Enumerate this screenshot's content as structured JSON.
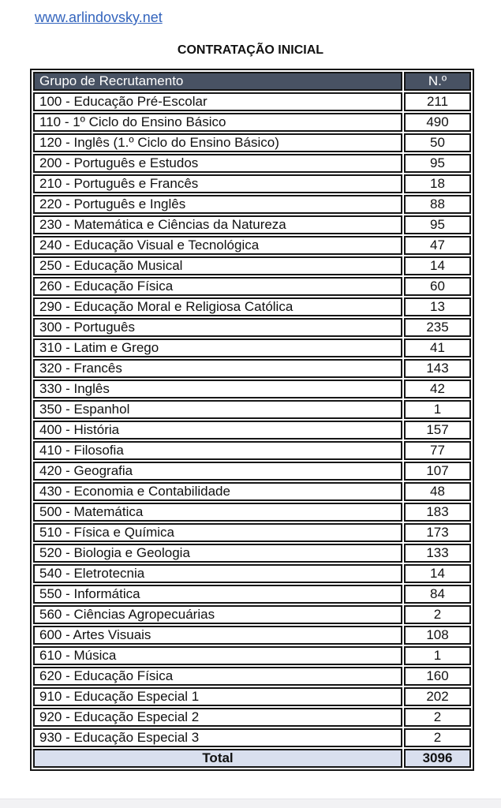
{
  "header": {
    "link_text": "www.arlindovsky.net",
    "title": "CONTRATAÇÃO INICIAL"
  },
  "table": {
    "headers": {
      "group": "Grupo de Recrutamento",
      "count": "N.º"
    },
    "rows": [
      {
        "group": "100 - Educação Pré-Escolar",
        "count": "211"
      },
      {
        "group": "110 - 1º Ciclo do Ensino Básico",
        "count": "490"
      },
      {
        "group": "120 - Inglês (1.º Ciclo do Ensino Básico)",
        "count": "50"
      },
      {
        "group": "200 - Português e Estudos",
        "count": "95"
      },
      {
        "group": "210 - Português e Francês",
        "count": "18"
      },
      {
        "group": "220 - Português e Inglês",
        "count": "88"
      },
      {
        "group": "230 - Matemática e Ciências da Natureza",
        "count": "95"
      },
      {
        "group": "240 - Educação Visual e Tecnológica",
        "count": "47"
      },
      {
        "group": "250 - Educação Musical",
        "count": "14"
      },
      {
        "group": "260 - Educação Física",
        "count": "60"
      },
      {
        "group": "290 - Educação Moral e Religiosa Católica",
        "count": "13"
      },
      {
        "group": "300 - Português",
        "count": "235"
      },
      {
        "group": "310 - Latim e Grego",
        "count": "41"
      },
      {
        "group": "320 - Francês",
        "count": "143"
      },
      {
        "group": "330 - Inglês",
        "count": "42"
      },
      {
        "group": "350 - Espanhol",
        "count": "1"
      },
      {
        "group": "400 - História",
        "count": "157"
      },
      {
        "group": "410 - Filosofia",
        "count": "77"
      },
      {
        "group": "420 - Geografia",
        "count": "107"
      },
      {
        "group": "430 - Economia e Contabilidade",
        "count": "48"
      },
      {
        "group": "500 - Matemática",
        "count": "183"
      },
      {
        "group": "510 - Física e Química",
        "count": "173"
      },
      {
        "group": "520 - Biologia e Geologia",
        "count": "133"
      },
      {
        "group": "540 - Eletrotecnia",
        "count": "14"
      },
      {
        "group": "550 - Informática",
        "count": "84"
      },
      {
        "group": "560 - Ciências Agropecuárias",
        "count": "2"
      },
      {
        "group": "600 - Artes Visuais",
        "count": "108"
      },
      {
        "group": "610 - Música",
        "count": "1"
      },
      {
        "group": "620 - Educação Física",
        "count": "160"
      },
      {
        "group": "910 - Educação Especial 1",
        "count": "202"
      },
      {
        "group": "920 - Educação Especial 2",
        "count": "2"
      },
      {
        "group": "930 - Educação Especial 3",
        "count": "2"
      }
    ],
    "total": {
      "label": "Total",
      "value": "3096"
    }
  },
  "colors": {
    "header_bg": "#485263",
    "header_text": "#ffffff",
    "total_bg": "#d9dfee",
    "link_blue": "#3465bd",
    "border": "#161616"
  },
  "chart_data": {
    "type": "table",
    "title": "CONTRATAÇÃO INICIAL",
    "columns": [
      "Grupo de Recrutamento",
      "N.º"
    ],
    "categories": [
      "100 - Educação Pré-Escolar",
      "110 - 1º Ciclo do Ensino Básico",
      "120 - Inglês (1.º Ciclo do Ensino Básico)",
      "200 - Português e Estudos",
      "210 - Português e Francês",
      "220 - Português e Inglês",
      "230 - Matemática e Ciências da Natureza",
      "240 - Educação Visual e Tecnológica",
      "250 - Educação Musical",
      "260 - Educação Física",
      "290 - Educação Moral e Religiosa Católica",
      "300 - Português",
      "310 - Latim e Grego",
      "320 - Francês",
      "330 - Inglês",
      "350 - Espanhol",
      "400 - História",
      "410 - Filosofia",
      "420 - Geografia",
      "430 - Economia e Contabilidade",
      "500 - Matemática",
      "510 - Física e Química",
      "520 - Biologia e Geologia",
      "540 - Eletrotecnia",
      "550 - Informática",
      "560 - Ciências Agropecuárias",
      "600 - Artes Visuais",
      "610 - Música",
      "620 - Educação Física",
      "910 - Educação Especial 1",
      "920 - Educação Especial 2",
      "930 - Educação Especial 3"
    ],
    "values": [
      211,
      490,
      50,
      95,
      18,
      88,
      95,
      47,
      14,
      60,
      13,
      235,
      41,
      143,
      42,
      1,
      157,
      77,
      107,
      48,
      183,
      173,
      133,
      14,
      84,
      2,
      108,
      1,
      160,
      202,
      2,
      2
    ],
    "total": 3096
  }
}
